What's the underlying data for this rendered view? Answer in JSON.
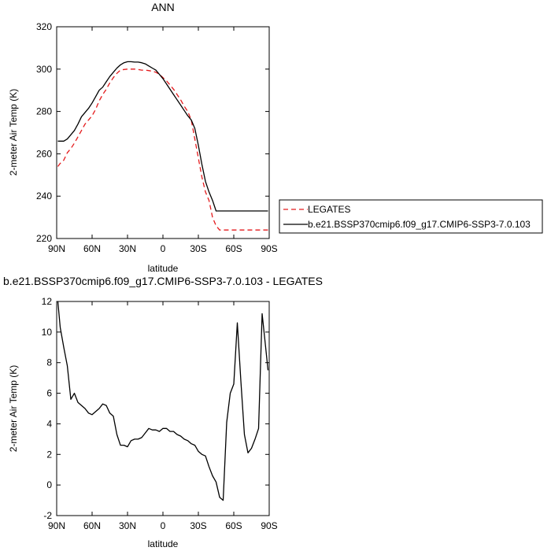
{
  "chart_data": [
    {
      "type": "line",
      "title": "ANN",
      "xlabel": "latitude",
      "ylabel": "2-meter Air Temp (K)",
      "xlim": [
        90,
        -90
      ],
      "ylim": [
        220,
        320
      ],
      "x_ticks": [
        90,
        60,
        30,
        0,
        -30,
        -60,
        -90
      ],
      "x_tick_labels": [
        "90N",
        "60N",
        "30N",
        "0",
        "30S",
        "60S",
        "90S"
      ],
      "y_ticks": [
        220,
        240,
        260,
        280,
        300,
        320
      ],
      "y_tick_labels": [
        "220",
        "240",
        "260",
        "280",
        "300",
        "320"
      ],
      "grid": false,
      "legend_placement": "right",
      "series": [
        {
          "name": "LEGATES",
          "color": "#e41a1c",
          "dash": "dashed",
          "x": [
            89,
            87,
            84,
            81,
            78,
            75,
            72,
            69,
            66,
            63,
            60,
            57,
            54,
            51,
            48,
            45,
            42,
            39,
            36,
            33,
            30,
            27,
            24,
            21,
            18,
            15,
            12,
            9,
            6,
            3,
            0,
            -3,
            -6,
            -9,
            -12,
            -15,
            -18,
            -21,
            -24,
            -27,
            -30,
            -33,
            -36,
            -39,
            -42,
            -45,
            -48,
            -51,
            -54,
            -57,
            -60,
            -63,
            -66,
            -69,
            -72,
            -75,
            -78,
            -81,
            -84,
            -87,
            -89
          ],
          "y": [
            254.0,
            255.5,
            257.0,
            260.5,
            262.5,
            265.0,
            268.0,
            271.0,
            274.0,
            276.0,
            278.0,
            281.0,
            285.0,
            288.0,
            290.5,
            293.5,
            296.0,
            298.0,
            299.5,
            299.8,
            300.0,
            300.0,
            300.0,
            299.8,
            299.5,
            299.5,
            299.3,
            299.0,
            298.5,
            297.5,
            296.0,
            294.5,
            292.5,
            290.5,
            288.0,
            285.5,
            282.5,
            280.0,
            276.0,
            267.0,
            258.0,
            249.0,
            242.0,
            238.0,
            230.0,
            226.0,
            224.0,
            224.0,
            224.0,
            224.0,
            224.0,
            224.0,
            224.0,
            224.0,
            224.0,
            224.0,
            224.0,
            224.0,
            224.0,
            224.0,
            224.0
          ]
        },
        {
          "name": "b.e21.BSSP370cmip6.f09_g17.CMIP6-SSP3-7.0.103",
          "color": "#000000",
          "dash": "solid",
          "x": [
            89,
            87,
            84,
            81,
            78,
            75,
            72,
            69,
            66,
            63,
            60,
            57,
            54,
            51,
            48,
            45,
            42,
            39,
            36,
            33,
            30,
            27,
            24,
            21,
            18,
            15,
            12,
            9,
            6,
            3,
            0,
            -3,
            -6,
            -9,
            -12,
            -15,
            -18,
            -21,
            -24,
            -27,
            -30,
            -33,
            -36,
            -39,
            -42,
            -45,
            -48,
            -51,
            -54,
            -57,
            -60,
            -63,
            -66,
            -69,
            -72,
            -75,
            -78,
            -81,
            -84,
            -87,
            -89
          ],
          "y": [
            266.0,
            266.0,
            266.0,
            267.0,
            269.0,
            271.0,
            274.0,
            277.5,
            279.5,
            281.5,
            284.0,
            287.0,
            290.0,
            291.5,
            294.0,
            296.5,
            298.5,
            300.5,
            302.0,
            303.0,
            303.5,
            303.5,
            303.3,
            303.3,
            303.0,
            302.5,
            301.5,
            300.5,
            299.5,
            297.5,
            295.5,
            293.0,
            290.5,
            288.0,
            285.5,
            283.0,
            280.5,
            278.0,
            276.0,
            272.0,
            264.0,
            255.0,
            247.0,
            242.0,
            238.0,
            233.0,
            233.0,
            233.0,
            233.0,
            233.0,
            233.0,
            233.0,
            233.0,
            233.0,
            233.0,
            233.0,
            233.0,
            233.0,
            233.0,
            233.0,
            233.0
          ]
        }
      ]
    },
    {
      "type": "line",
      "title": "b.e21.BSSP370cmip6.f09_g17.CMIP6-SSP3-7.0.103 - LEGATES",
      "xlabel": "latitude",
      "ylabel": "2-meter Air Temp (K)",
      "xlim": [
        90,
        -90
      ],
      "ylim": [
        -2,
        12
      ],
      "x_ticks": [
        90,
        60,
        30,
        0,
        -30,
        -60,
        -90
      ],
      "x_tick_labels": [
        "90N",
        "60N",
        "30N",
        "0",
        "30S",
        "60S",
        "90S"
      ],
      "y_ticks": [
        -2,
        0,
        2,
        4,
        6,
        8,
        10,
        12
      ],
      "y_tick_labels": [
        "-2",
        "0",
        "2",
        "4",
        "6",
        "8",
        "10",
        "12"
      ],
      "grid": false,
      "series": [
        {
          "color": "#000000",
          "dash": "solid",
          "x": [
            89,
            87,
            84,
            81,
            78,
            75,
            72,
            69,
            66,
            63,
            60,
            57,
            54,
            51,
            48,
            45,
            42,
            39,
            36,
            33,
            30,
            27,
            24,
            21,
            18,
            15,
            12,
            9,
            6,
            3,
            0,
            -3,
            -6,
            -9,
            -12,
            -15,
            -18,
            -21,
            -24,
            -27,
            -30,
            -33,
            -36,
            -39,
            -42,
            -45,
            -48,
            -51,
            -54,
            -57,
            -60,
            -63,
            -66,
            -69,
            -72,
            -75,
            -78,
            -81,
            -84,
            -87,
            -89
          ],
          "y": [
            12.0,
            10.3,
            9.0,
            7.8,
            5.6,
            6.0,
            5.4,
            5.2,
            5.0,
            4.7,
            4.6,
            4.8,
            5.0,
            5.3,
            5.2,
            4.7,
            4.5,
            3.3,
            2.6,
            2.6,
            2.5,
            2.9,
            3.0,
            3.0,
            3.1,
            3.4,
            3.7,
            3.6,
            3.6,
            3.5,
            3.7,
            3.7,
            3.5,
            3.5,
            3.3,
            3.2,
            3.0,
            2.9,
            2.7,
            2.6,
            2.2,
            2.0,
            1.9,
            1.2,
            0.6,
            0.2,
            -0.8,
            -1.0,
            4.1,
            6.0,
            6.6,
            10.6,
            6.8,
            3.3,
            2.1,
            2.4,
            3.0,
            3.7,
            11.2,
            9.0,
            7.5
          ]
        }
      ]
    }
  ]
}
